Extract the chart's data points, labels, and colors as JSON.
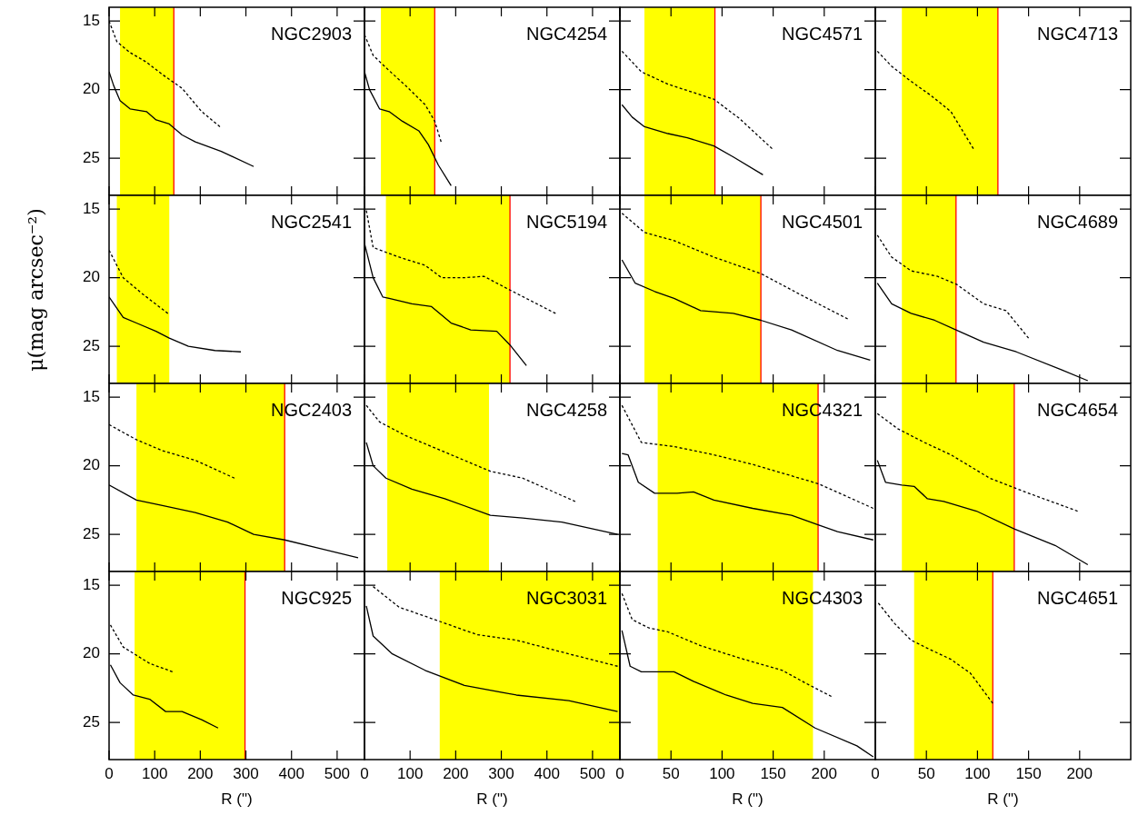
{
  "chart_data": [
    {
      "type": "line",
      "title": "NGC2903",
      "xlim": [
        0,
        560
      ],
      "ylim": [
        27.7,
        14
      ],
      "xticks": [
        0,
        100,
        200,
        300,
        400,
        500
      ],
      "yticks": [
        15,
        20,
        25
      ],
      "tick_labels": "y",
      "marker": "none",
      "bands": [
        {
          "axis": "x",
          "from": 24,
          "to": 142,
          "color": "#ffff00"
        }
      ],
      "ref_lines": [
        {
          "axis": "x",
          "value": 142,
          "color": "#ff0000"
        }
      ],
      "series": [
        {
          "color": "#000000",
          "line_style": "solid",
          "x": [
            0,
            10,
            24,
            46,
            82,
            103,
            132,
            160,
            189,
            246,
            317
          ],
          "values": [
            18.7,
            19.7,
            20.8,
            21.4,
            21.6,
            22.2,
            22.5,
            23.3,
            23.8,
            24.5,
            25.6
          ]
        },
        {
          "color": "#000000",
          "line_style": "dotted",
          "x": [
            0,
            17,
            46,
            82,
            117,
            160,
            203,
            243
          ],
          "values": [
            15,
            16.5,
            17.3,
            18.0,
            18.9,
            19.9,
            21.6,
            22.7
          ]
        }
      ]
    },
    {
      "type": "line",
      "title": "NGC4254",
      "xlim": [
        0,
        560
      ],
      "ylim": [
        27.7,
        14
      ],
      "xticks": [
        0,
        100,
        200,
        300,
        400,
        500
      ],
      "yticks": [
        15,
        20,
        25
      ],
      "tick_labels": false,
      "marker": "none",
      "bands": [
        {
          "axis": "x",
          "from": 36,
          "to": 154,
          "color": "#ffff00"
        }
      ],
      "ref_lines": [
        {
          "axis": "x",
          "value": 154,
          "color": "#ff0000"
        }
      ],
      "series": [
        {
          "color": "#000000",
          "line_style": "solid",
          "x": [
            0,
            11,
            33,
            54,
            83,
            119,
            140,
            162,
            190
          ],
          "values": [
            18.7,
            20.0,
            21.4,
            21.6,
            22.3,
            23.0,
            24.0,
            25.5,
            27.0
          ]
        },
        {
          "color": "#000000",
          "line_style": "dotted",
          "x": [
            0,
            19,
            47,
            90,
            133,
            154,
            168
          ],
          "values": [
            16.0,
            17.5,
            18.4,
            19.7,
            21.1,
            22.3,
            23.8
          ]
        }
      ]
    },
    {
      "type": "line",
      "title": "NGC4571",
      "xlim": [
        0,
        250
      ],
      "ylim": [
        27.7,
        14
      ],
      "xticks": [
        0,
        50,
        100,
        150,
        200
      ],
      "yticks": [
        15,
        20,
        25
      ],
      "tick_labels": false,
      "marker": "none",
      "bands": [
        {
          "axis": "x",
          "from": 24,
          "to": 93,
          "color": "#ffff00"
        }
      ],
      "ref_lines": [
        {
          "axis": "x",
          "value": 93,
          "color": "#ff0000"
        }
      ],
      "series": [
        {
          "color": "#000000",
          "line_style": "solid",
          "x": [
            2,
            12,
            24,
            47,
            66,
            92,
            111,
            140
          ],
          "values": [
            21.1,
            22.0,
            22.7,
            23.2,
            23.5,
            24.1,
            24.9,
            26.2
          ]
        },
        {
          "color": "#000000",
          "line_style": "dotted",
          "x": [
            2,
            21,
            47,
            92,
            117,
            149
          ],
          "values": [
            17.2,
            18.7,
            19.6,
            20.7,
            22.1,
            24.3
          ]
        }
      ]
    },
    {
      "type": "line",
      "title": "NGC4713",
      "xlim": [
        0,
        250
      ],
      "ylim": [
        27.7,
        14
      ],
      "xticks": [
        0,
        50,
        100,
        150,
        200
      ],
      "yticks": [
        15,
        20,
        25
      ],
      "tick_labels": false,
      "marker": "none",
      "bands": [
        {
          "axis": "x",
          "from": 26,
          "to": 120,
          "color": "#ffff00"
        }
      ],
      "ref_lines": [
        {
          "axis": "x",
          "value": 120,
          "color": "#ff0000"
        }
      ],
      "series": [
        {
          "color": "#000000",
          "line_style": "dotted",
          "x": [
            2,
            16,
            35,
            54,
            74,
            96
          ],
          "values": [
            17.2,
            18.3,
            19.4,
            20.4,
            21.6,
            24.3
          ]
        }
      ]
    },
    {
      "type": "line",
      "title": "NGC2541",
      "ylabel": "μ(mag arcsec⁻²)",
      "xlim": [
        0,
        560
      ],
      "ylim": [
        27.7,
        14
      ],
      "xticks": [
        0,
        100,
        200,
        300,
        400,
        500
      ],
      "yticks": [
        15,
        20,
        25
      ],
      "tick_labels": "y",
      "marker": "none",
      "bands": [
        {
          "axis": "x",
          "from": 17,
          "to": 132,
          "color": "#ffff00"
        }
      ],
      "series": [
        {
          "color": "#000000",
          "line_style": "solid",
          "x": [
            0,
            31,
            60,
            103,
            132,
            174,
            232,
            289
          ],
          "values": [
            21.4,
            22.9,
            23.3,
            23.9,
            24.4,
            25.0,
            25.3,
            25.4
          ]
        },
        {
          "color": "#000000",
          "line_style": "dotted",
          "x": [
            0,
            31,
            74,
            129
          ],
          "values": [
            18.0,
            20.0,
            21.2,
            22.6
          ]
        }
      ]
    },
    {
      "type": "line",
      "title": "NGC5194",
      "xlim": [
        0,
        560
      ],
      "ylim": [
        27.7,
        14
      ],
      "xticks": [
        0,
        100,
        200,
        300,
        400,
        500
      ],
      "yticks": [
        15,
        20,
        25
      ],
      "tick_labels": false,
      "marker": "none",
      "bands": [
        {
          "axis": "x",
          "from": 47,
          "to": 319,
          "color": "#ffff00"
        }
      ],
      "ref_lines": [
        {
          "axis": "x",
          "value": 319,
          "color": "#ff0000"
        }
      ],
      "series": [
        {
          "color": "#000000",
          "line_style": "solid",
          "x": [
            0,
            19,
            40,
            54,
            104,
            147,
            190,
            233,
            290,
            319,
            355
          ],
          "values": [
            17.5,
            20.0,
            21.4,
            21.5,
            21.9,
            22.1,
            23.3,
            23.8,
            23.9,
            24.9,
            26.4
          ]
        },
        {
          "color": "#000000",
          "line_style": "dotted",
          "x": [
            4,
            19,
            76,
            133,
            169,
            219,
            262,
            319,
            419
          ],
          "values": [
            15.1,
            17.8,
            18.5,
            19.1,
            20.0,
            20.0,
            19.9,
            20.9,
            22.6
          ]
        }
      ]
    },
    {
      "type": "line",
      "title": "NGC4501",
      "xlim": [
        0,
        250
      ],
      "ylim": [
        27.7,
        14
      ],
      "xticks": [
        0,
        50,
        100,
        150,
        200
      ],
      "yticks": [
        15,
        20,
        25
      ],
      "tick_labels": false,
      "marker": "none",
      "bands": [
        {
          "axis": "x",
          "from": 24,
          "to": 138,
          "color": "#ffff00"
        }
      ],
      "ref_lines": [
        {
          "axis": "x",
          "value": 138,
          "color": "#ff0000"
        }
      ],
      "series": [
        {
          "color": "#000000",
          "line_style": "solid",
          "x": [
            2,
            15,
            34,
            53,
            79,
            111,
            138,
            168,
            213,
            245
          ],
          "values": [
            18.7,
            20.4,
            21.0,
            21.5,
            22.4,
            22.6,
            23.1,
            23.8,
            25.3,
            26.0
          ]
        },
        {
          "color": "#000000",
          "line_style": "dotted",
          "x": [
            2,
            24,
            53,
            92,
            138,
            181,
            223
          ],
          "values": [
            15.3,
            16.7,
            17.3,
            18.5,
            19.7,
            21.4,
            23.0
          ]
        }
      ]
    },
    {
      "type": "line",
      "title": "NGC4689",
      "xlim": [
        0,
        250
      ],
      "ylim": [
        27.7,
        14
      ],
      "xticks": [
        0,
        50,
        100,
        150,
        200
      ],
      "yticks": [
        15,
        20,
        25
      ],
      "tick_labels": false,
      "marker": "none",
      "bands": [
        {
          "axis": "x",
          "from": 26,
          "to": 79,
          "color": "#ffff00"
        }
      ],
      "ref_lines": [
        {
          "axis": "x",
          "value": 79,
          "color": "#ff0000"
        }
      ],
      "series": [
        {
          "color": "#000000",
          "line_style": "solid",
          "x": [
            2,
            16,
            35,
            58,
            79,
            106,
            138,
            182,
            208
          ],
          "values": [
            20.4,
            21.9,
            22.6,
            23.1,
            23.8,
            24.7,
            25.4,
            26.7,
            27.5
          ]
        },
        {
          "color": "#000000",
          "line_style": "dotted",
          "x": [
            2,
            16,
            35,
            61,
            80,
            106,
            128,
            150
          ],
          "values": [
            16.9,
            18.5,
            19.5,
            19.9,
            20.5,
            21.9,
            22.4,
            24.4
          ]
        }
      ]
    },
    {
      "type": "line",
      "title": "NGC2403",
      "xlim": [
        0,
        560
      ],
      "ylim": [
        27.7,
        14
      ],
      "xticks": [
        0,
        100,
        200,
        300,
        400,
        500
      ],
      "yticks": [
        15,
        20,
        25
      ],
      "tick_labels": "y",
      "marker": "none",
      "bands": [
        {
          "axis": "x",
          "from": 60,
          "to": 385,
          "color": "#ffff00"
        }
      ],
      "ref_lines": [
        {
          "axis": "x",
          "value": 385,
          "color": "#ff0000"
        }
      ],
      "series": [
        {
          "color": "#000000",
          "line_style": "solid",
          "x": [
            0,
            60,
            117,
            189,
            260,
            317,
            385,
            460,
            546
          ],
          "values": [
            21.4,
            22.5,
            22.9,
            23.4,
            24.1,
            25.0,
            25.4,
            26.0,
            26.7
          ]
        },
        {
          "color": "#000000",
          "line_style": "dotted",
          "x": [
            0,
            60,
            117,
            189,
            275
          ],
          "values": [
            17.0,
            18.1,
            18.9,
            19.6,
            20.9
          ]
        }
      ]
    },
    {
      "type": "line",
      "title": "NGC4258",
      "xlim": [
        0,
        560
      ],
      "ylim": [
        27.7,
        14
      ],
      "xticks": [
        0,
        100,
        200,
        300,
        400,
        500
      ],
      "yticks": [
        15,
        20,
        25
      ],
      "tick_labels": false,
      "marker": "none",
      "bands": [
        {
          "axis": "x",
          "from": 50,
          "to": 273,
          "color": "#ffff00"
        }
      ],
      "series": [
        {
          "color": "#000000",
          "line_style": "solid",
          "x": [
            4,
            19,
            47,
            104,
            176,
            276,
            347,
            433,
            555
          ],
          "values": [
            18.3,
            20.0,
            20.9,
            21.7,
            22.4,
            23.6,
            23.8,
            24.1,
            25.0
          ]
        },
        {
          "color": "#000000",
          "line_style": "dotted",
          "x": [
            4,
            33,
            90,
            176,
            276,
            347,
            462
          ],
          "values": [
            15.6,
            16.8,
            17.8,
            19.0,
            20.4,
            20.9,
            22.6
          ]
        }
      ]
    },
    {
      "type": "line",
      "title": "NGC4321",
      "xlim": [
        0,
        250
      ],
      "ylim": [
        27.7,
        14
      ],
      "xticks": [
        0,
        50,
        100,
        150,
        200
      ],
      "yticks": [
        15,
        20,
        25
      ],
      "tick_labels": false,
      "marker": "none",
      "bands": [
        {
          "axis": "x",
          "from": 37,
          "to": 194,
          "color": "#ffff00"
        }
      ],
      "ref_lines": [
        {
          "axis": "x",
          "value": 194,
          "color": "#ff0000"
        }
      ],
      "series": [
        {
          "color": "#000000",
          "line_style": "solid",
          "x": [
            2,
            8,
            18,
            34,
            56,
            72,
            92,
            130,
            168,
            194,
            213,
            248
          ],
          "values": [
            19.1,
            19.2,
            21.2,
            22.0,
            22.0,
            21.9,
            22.5,
            23.1,
            23.6,
            24.3,
            24.8,
            25.4
          ]
        },
        {
          "color": "#000000",
          "line_style": "dotted",
          "x": [
            2,
            21,
            53,
            92,
            130,
            194,
            248
          ],
          "values": [
            15.6,
            18.3,
            18.6,
            19.2,
            19.9,
            21.3,
            23.1
          ]
        }
      ]
    },
    {
      "type": "line",
      "title": "NGC4654",
      "xlim": [
        0,
        250
      ],
      "ylim": [
        27.7,
        14
      ],
      "xticks": [
        0,
        50,
        100,
        150,
        200
      ],
      "yticks": [
        15,
        20,
        25
      ],
      "tick_labels": false,
      "marker": "none",
      "bands": [
        {
          "axis": "x",
          "from": 26,
          "to": 136,
          "color": "#ffff00"
        }
      ],
      "ref_lines": [
        {
          "axis": "x",
          "value": 136,
          "color": "#ff0000"
        }
      ],
      "series": [
        {
          "color": "#000000",
          "line_style": "solid",
          "x": [
            2,
            10,
            26,
            38,
            51,
            67,
            99,
            136,
            176,
            208
          ],
          "values": [
            19.6,
            21.2,
            21.4,
            21.5,
            22.4,
            22.6,
            23.3,
            24.6,
            25.8,
            27.2
          ]
        },
        {
          "color": "#000000",
          "line_style": "dotted",
          "x": [
            2,
            22,
            48,
            74,
            112,
            150,
            198
          ],
          "values": [
            16.2,
            17.3,
            18.3,
            19.2,
            20.9,
            22.0,
            23.3
          ]
        }
      ]
    },
    {
      "type": "line",
      "title": "NGC925",
      "xlabel": "R (\")",
      "xlim": [
        0,
        560
      ],
      "ylim": [
        27.7,
        14
      ],
      "xticks": [
        0,
        100,
        200,
        300,
        400,
        500
      ],
      "yticks": [
        15,
        20,
        25
      ],
      "marker": "none",
      "bands": [
        {
          "axis": "x",
          "from": 56,
          "to": 298,
          "color": "#ffff00"
        }
      ],
      "ref_lines": [
        {
          "axis": "x",
          "value": 298,
          "color": "#ff0000"
        }
      ],
      "series": [
        {
          "color": "#000000",
          "line_style": "solid",
          "x": [
            3,
            24,
            53,
            89,
            124,
            160,
            203,
            239
          ],
          "values": [
            20.8,
            22.1,
            23.0,
            23.3,
            24.2,
            24.2,
            24.8,
            25.4
          ]
        },
        {
          "color": "#000000",
          "line_style": "dotted",
          "x": [
            3,
            31,
            89,
            139
          ],
          "values": [
            17.9,
            19.5,
            20.7,
            21.3
          ]
        }
      ]
    },
    {
      "type": "line",
      "title": "NGC3031",
      "xlabel": "R (\")",
      "xlim": [
        0,
        560
      ],
      "ylim": [
        27.7,
        14
      ],
      "xticks": [
        0,
        100,
        200,
        300,
        400,
        500
      ],
      "yticks": [
        15,
        20,
        25
      ],
      "tick_labels": "x",
      "marker": "none",
      "bands": [
        {
          "axis": "x",
          "from": 165,
          "to": 560,
          "color": "#ffff00"
        }
      ],
      "series": [
        {
          "color": "#000000",
          "line_style": "solid",
          "x": [
            4,
            19,
            61,
            133,
            219,
            333,
            448,
            555
          ],
          "values": [
            16.5,
            18.7,
            20.0,
            21.2,
            22.3,
            23.0,
            23.4,
            24.2
          ]
        },
        {
          "color": "#000000",
          "line_style": "dotted",
          "x": [
            19,
            76,
            162,
            247,
            333,
            448,
            555
          ],
          "values": [
            15.1,
            16.6,
            17.6,
            18.6,
            19.0,
            20.0,
            20.9
          ]
        }
      ]
    },
    {
      "type": "line",
      "title": "NGC4303",
      "xlabel": "R (\")",
      "xlim": [
        0,
        250
      ],
      "ylim": [
        27.7,
        14
      ],
      "xticks": [
        0,
        50,
        100,
        150,
        200
      ],
      "yticks": [
        15,
        20,
        25
      ],
      "tick_labels": "x",
      "marker": "none",
      "bands": [
        {
          "axis": "x",
          "from": 37,
          "to": 189,
          "color": "#ffff00"
        }
      ],
      "series": [
        {
          "color": "#000000",
          "line_style": "solid",
          "x": [
            2,
            10,
            21,
            34,
            53,
            72,
            104,
            130,
            159,
            191,
            232,
            248
          ],
          "values": [
            18.3,
            20.9,
            21.3,
            21.3,
            21.3,
            22.0,
            23.0,
            23.6,
            23.9,
            25.4,
            26.7,
            27.5
          ]
        },
        {
          "color": "#000000",
          "line_style": "dotted",
          "x": [
            2,
            12,
            28,
            47,
            79,
            117,
            159,
            181,
            207
          ],
          "values": [
            15.6,
            17.5,
            18.1,
            18.4,
            19.4,
            20.3,
            21.2,
            22.1,
            23.1
          ]
        }
      ]
    },
    {
      "type": "line",
      "title": "NGC4651",
      "xlabel": "R (\")",
      "xlim": [
        0,
        250
      ],
      "ylim": [
        27.7,
        14
      ],
      "xticks": [
        0,
        50,
        100,
        150,
        200
      ],
      "yticks": [
        15,
        20,
        25
      ],
      "tick_labels": "x",
      "marker": "none",
      "bands": [
        {
          "axis": "x",
          "from": 38,
          "to": 115,
          "color": "#ffff00"
        }
      ],
      "ref_lines": [
        {
          "axis": "x",
          "value": 115,
          "color": "#ff0000"
        }
      ],
      "series": [
        {
          "color": "#000000",
          "line_style": "dotted",
          "x": [
            3,
            19,
            35,
            54,
            74,
            93,
            115
          ],
          "values": [
            16.3,
            17.8,
            19.0,
            19.7,
            20.4,
            21.4,
            23.6
          ]
        }
      ]
    }
  ]
}
